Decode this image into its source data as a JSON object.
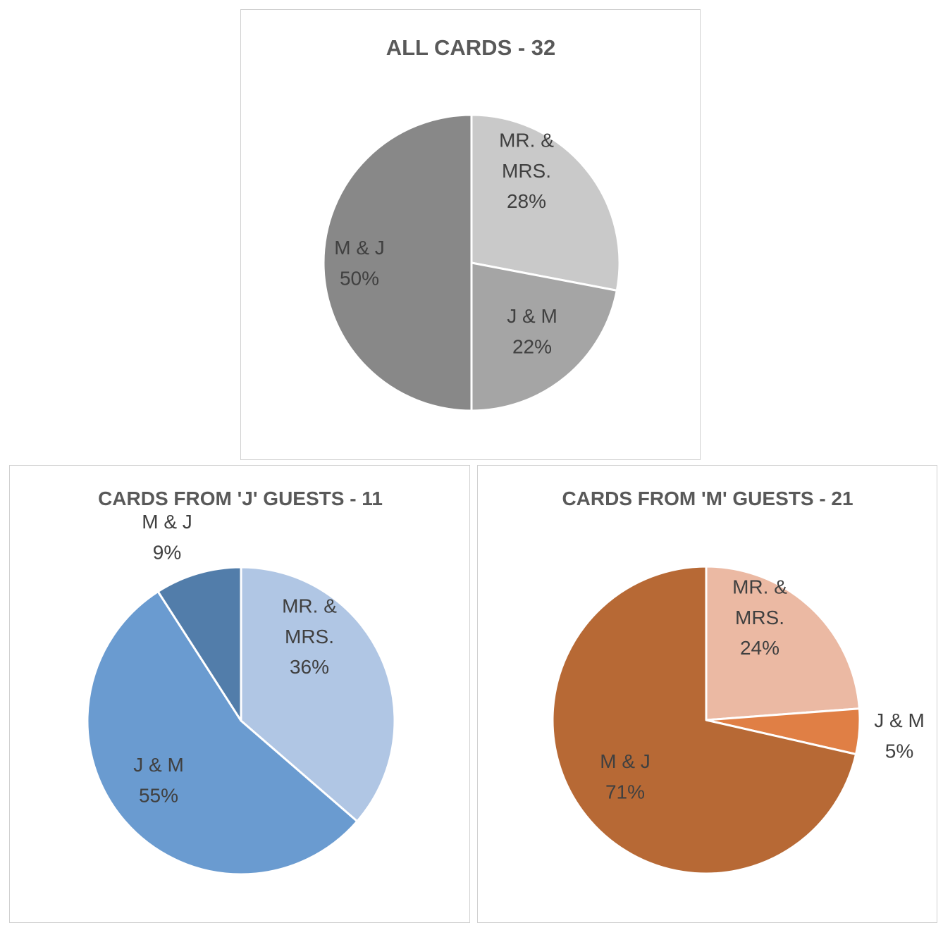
{
  "chart_data": [
    {
      "type": "pie",
      "title": "ALL CARDS - 32",
      "slices": [
        {
          "label_lines": [
            "MR. &",
            "MRS."
          ],
          "pct_label": "28%",
          "value": 28,
          "color": "#c9c9c9"
        },
        {
          "label_lines": [
            "J & M"
          ],
          "pct_label": "22%",
          "value": 22,
          "color": "#a5a5a5"
        },
        {
          "label_lines": [
            "M & J"
          ],
          "pct_label": "50%",
          "value": 50,
          "color": "#888888"
        }
      ]
    },
    {
      "type": "pie",
      "title": "CARDS FROM 'J' GUESTS - 11",
      "slices": [
        {
          "label_lines": [
            "MR. &",
            "MRS."
          ],
          "pct_label": "36%",
          "value": 36.36,
          "color": "#b0c6e4"
        },
        {
          "label_lines": [
            "J & M"
          ],
          "pct_label": "55%",
          "value": 54.55,
          "color": "#6a9bd0"
        },
        {
          "label_lines": [
            "M & J"
          ],
          "pct_label": "9%",
          "value": 9.09,
          "color": "#527daa"
        }
      ]
    },
    {
      "type": "pie",
      "title": "CARDS FROM 'M' GUESTS - 21",
      "slices": [
        {
          "label_lines": [
            "MR. &",
            "MRS."
          ],
          "pct_label": "24%",
          "value": 23.81,
          "color": "#ebb9a3"
        },
        {
          "label_lines": [
            "J & M"
          ],
          "pct_label": "5%",
          "value": 4.76,
          "color": "#e07f45"
        },
        {
          "label_lines": [
            "M & J"
          ],
          "pct_label": "71%",
          "value": 71.43,
          "color": "#b76935"
        }
      ]
    }
  ]
}
